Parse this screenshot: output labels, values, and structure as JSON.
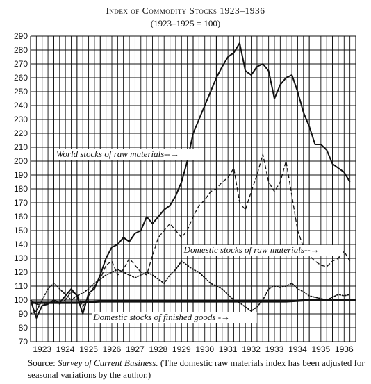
{
  "header": {
    "title": "Index of Commodity Stocks 1923–1936",
    "subtitle": "(1923–1925 = 100)"
  },
  "source": {
    "label": "Source:",
    "publication": "Survey of Current Business.",
    "note": "(The domestic raw materials index has been adjusted for seasonal variations by the author.)"
  },
  "chart_data": {
    "type": "line",
    "title": "Index of Commodity Stocks 1923–1936",
    "subtitle": "(1923–1925 = 100)",
    "xlabel": "",
    "ylabel": "",
    "xlim": [
      1923,
      1937
    ],
    "ylim": [
      70,
      290
    ],
    "y_ticks": [
      70,
      80,
      90,
      100,
      110,
      120,
      130,
      140,
      150,
      160,
      170,
      180,
      190,
      200,
      210,
      220,
      230,
      240,
      250,
      260,
      270,
      280,
      290
    ],
    "x_tick_labels": [
      "1923",
      "1924",
      "1925",
      "1926",
      "1927",
      "1928",
      "1929",
      "1930",
      "1931",
      "1932",
      "1933",
      "1934",
      "1935",
      "1936"
    ],
    "grid": true,
    "legend": "none",
    "colors": {
      "line": "#111111",
      "grid": "#111111"
    },
    "series": [
      {
        "name": "World stocks of raw materials",
        "style": "solid",
        "annotation": "World stocks of raw materials--→",
        "x": [
          1923.0,
          1923.25,
          1923.5,
          1923.75,
          1924.0,
          1924.25,
          1924.5,
          1924.75,
          1925.0,
          1925.25,
          1925.5,
          1925.75,
          1926.0,
          1926.25,
          1926.5,
          1926.75,
          1927.0,
          1927.25,
          1927.5,
          1927.75,
          1928.0,
          1928.25,
          1928.5,
          1928.75,
          1929.0,
          1929.25,
          1929.5,
          1929.75,
          1930.0,
          1930.25,
          1930.5,
          1930.75,
          1931.0,
          1931.25,
          1931.5,
          1931.75,
          1932.0,
          1932.25,
          1932.5,
          1932.75,
          1933.0,
          1933.25,
          1933.5,
          1933.75,
          1934.0,
          1934.25,
          1934.5,
          1934.75,
          1935.0,
          1935.25,
          1935.5,
          1935.75,
          1936.0,
          1936.25,
          1936.5,
          1936.75
        ],
        "y": [
          100,
          87,
          96,
          97,
          100,
          98,
          103,
          108,
          103,
          90,
          105,
          108,
          118,
          130,
          138,
          140,
          145,
          142,
          148,
          150,
          160,
          155,
          160,
          165,
          168,
          175,
          185,
          200,
          220,
          230,
          240,
          250,
          260,
          268,
          275,
          278,
          285,
          265,
          262,
          268,
          270,
          265,
          245,
          255,
          260,
          262,
          250,
          235,
          225,
          212,
          212,
          208,
          198,
          195,
          192,
          185
        ]
      },
      {
        "name": "Domestic stocks of raw materials",
        "style": "dashed",
        "annotation": "Domestic stocks of raw materials--→",
        "x": [
          1923.0,
          1923.25,
          1923.5,
          1923.75,
          1924.0,
          1924.25,
          1924.5,
          1924.75,
          1925.0,
          1925.25,
          1925.5,
          1925.75,
          1926.0,
          1926.25,
          1926.5,
          1926.75,
          1927.0,
          1927.25,
          1927.5,
          1927.75,
          1928.0,
          1928.25,
          1928.5,
          1928.75,
          1929.0,
          1929.25,
          1929.5,
          1929.75,
          1930.0,
          1930.25,
          1930.5,
          1930.75,
          1931.0,
          1931.25,
          1931.5,
          1931.75,
          1932.0,
          1932.25,
          1932.5,
          1932.75,
          1933.0,
          1933.25,
          1933.5,
          1933.75,
          1934.0,
          1934.25,
          1934.5,
          1934.75,
          1935.0,
          1935.25,
          1935.5,
          1935.75,
          1936.0,
          1936.25,
          1936.5,
          1936.75
        ],
        "y": [
          100,
          97,
          96,
          98,
          99,
          97,
          100,
          106,
          104,
          95,
          103,
          110,
          115,
          125,
          128,
          118,
          122,
          130,
          125,
          120,
          118,
          132,
          145,
          150,
          155,
          150,
          145,
          150,
          160,
          168,
          172,
          178,
          180,
          185,
          188,
          195,
          170,
          165,
          178,
          190,
          205,
          185,
          178,
          185,
          200,
          175,
          150,
          138,
          132,
          128,
          125,
          124,
          128,
          130,
          135,
          128
        ]
      },
      {
        "name": "Domestic stocks of finished goods",
        "style": "dotted",
        "annotation": "Domestic stocks of finished goods -→",
        "x": [
          1923.0,
          1923.25,
          1923.5,
          1923.75,
          1924.0,
          1924.25,
          1924.5,
          1924.75,
          1925.0,
          1925.25,
          1925.5,
          1925.75,
          1926.0,
          1926.25,
          1926.5,
          1926.75,
          1927.0,
          1927.25,
          1927.5,
          1927.75,
          1928.0,
          1928.25,
          1928.5,
          1928.75,
          1929.0,
          1929.25,
          1929.5,
          1929.75,
          1930.0,
          1930.25,
          1930.5,
          1930.75,
          1931.0,
          1931.25,
          1931.5,
          1931.75,
          1932.0,
          1932.25,
          1932.5,
          1932.75,
          1933.0,
          1933.25,
          1933.5,
          1933.75,
          1934.0,
          1934.25,
          1934.5,
          1934.75,
          1935.0,
          1935.25,
          1935.5,
          1935.75,
          1936.0,
          1936.25,
          1936.5,
          1936.75
        ],
        "y": [
          90,
          92,
          100,
          108,
          112,
          108,
          104,
          100,
          103,
          105,
          108,
          112,
          115,
          118,
          120,
          122,
          120,
          118,
          116,
          118,
          120,
          118,
          115,
          112,
          118,
          122,
          128,
          125,
          122,
          120,
          116,
          112,
          110,
          108,
          104,
          100,
          98,
          95,
          92,
          95,
          100,
          108,
          110,
          109,
          110,
          112,
          108,
          106,
          103,
          102,
          101,
          100,
          102,
          104,
          103,
          104
        ]
      },
      {
        "name": "1923–1925 base",
        "style": "heavy",
        "x": [
          1923.0,
          1924.0,
          1925.0,
          1926.0,
          1927.0,
          1928.0,
          1929.0,
          1930.0,
          1931.0,
          1932.0,
          1933.0,
          1934.0,
          1935.0,
          1936.0,
          1937.0
        ],
        "y": [
          98,
          98,
          98,
          99,
          99,
          99,
          99,
          99,
          99,
          99,
          99,
          99,
          100,
          100,
          100
        ]
      }
    ]
  }
}
